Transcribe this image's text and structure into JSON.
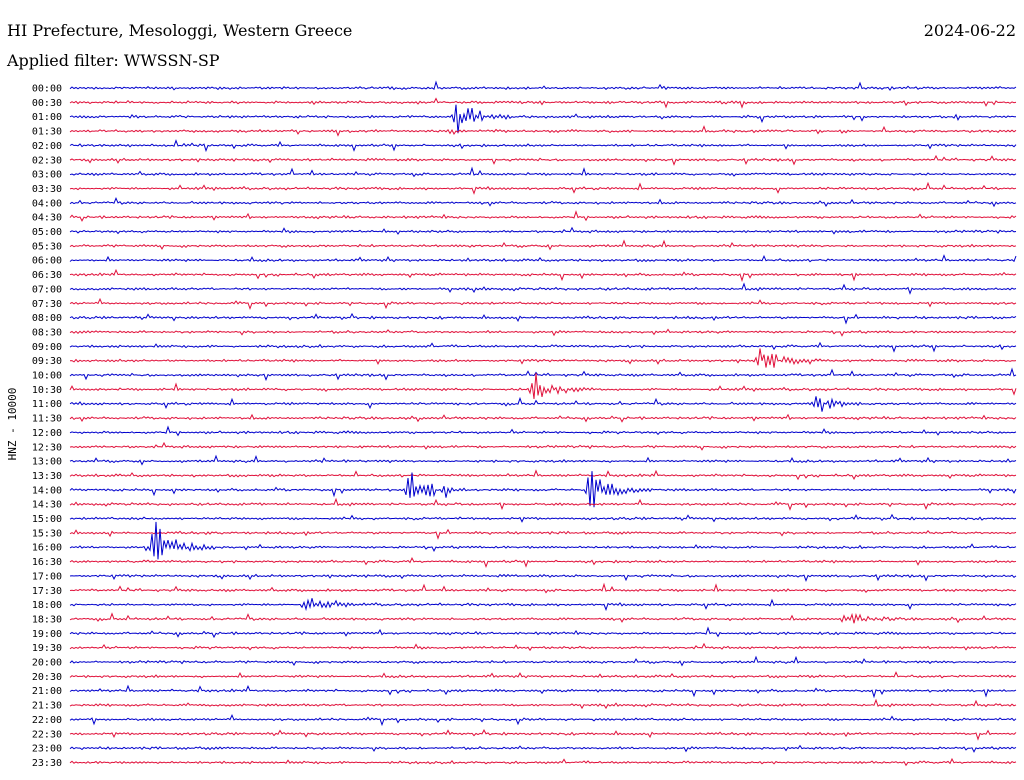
{
  "header": {
    "station": "HI Prefecture, Mesologgi, Western Greece",
    "date": "2024-06-22",
    "filter": "Applied filter: WWSSN-SP"
  },
  "colors": {
    "even": "#0000cc",
    "odd": "#e0103a"
  },
  "chart_data": {
    "type": "line",
    "ylabel": "HNZ - 10000",
    "tick_labels": [
      "00:00",
      "00:30",
      "01:00",
      "01:30",
      "02:00",
      "02:30",
      "03:00",
      "03:30",
      "04:00",
      "04:30",
      "05:00",
      "05:30",
      "06:00",
      "06:30",
      "07:00",
      "07:30",
      "08:00",
      "08:30",
      "09:00",
      "09:30",
      "10:00",
      "10:30",
      "11:00",
      "11:30",
      "12:00",
      "12:30",
      "13:00",
      "13:30",
      "14:00",
      "14:30",
      "15:00",
      "15:30",
      "16:00",
      "16:30",
      "17:00",
      "17:30",
      "18:00",
      "18:30",
      "19:00",
      "19:30",
      "20:00",
      "20:30",
      "21:00",
      "21:30",
      "22:00",
      "22:30",
      "23:00",
      "23:30"
    ],
    "events": [
      {
        "row": 2,
        "pos": 0.41,
        "amp": 1.0
      },
      {
        "row": 19,
        "pos": 0.73,
        "amp": 0.8
      },
      {
        "row": 21,
        "pos": 0.49,
        "amp": 1.2
      },
      {
        "row": 22,
        "pos": 0.79,
        "amp": 0.6
      },
      {
        "row": 28,
        "pos": 0.36,
        "amp": 1.2
      },
      {
        "row": 28,
        "pos": 0.55,
        "amp": 1.4
      },
      {
        "row": 32,
        "pos": 0.09,
        "amp": 1.6
      },
      {
        "row": 36,
        "pos": 0.25,
        "amp": 0.4
      },
      {
        "row": 37,
        "pos": 0.82,
        "amp": 0.4
      }
    ]
  }
}
